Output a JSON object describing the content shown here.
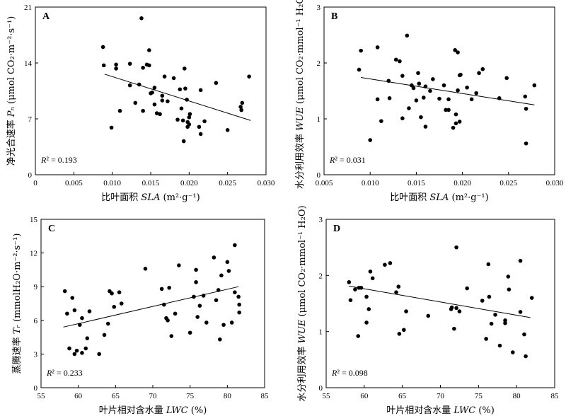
{
  "chart_data": [
    {
      "type": "scatter",
      "panel": "A",
      "xlabel": "比叶面积 SLA (m²·g⁻¹)",
      "ylabel": "净光合速率 Pₙ (μmol CO₂·m⁻²·s⁻¹)",
      "xlim": [
        0,
        0.03
      ],
      "ylim": [
        0,
        21
      ],
      "xticks": [
        "0",
        "0.005",
        "0.010",
        "0.015",
        "0.020",
        "0.025",
        "0.030"
      ],
      "yticks": [
        "0",
        "7",
        "14",
        "21"
      ],
      "r2_label": "R² = 0.193",
      "fit": {
        "x": [
          0.009,
          0.028
        ],
        "y": [
          12.6,
          6.8
        ]
      },
      "points": [
        [
          0.0088,
          16.0
        ],
        [
          0.0089,
          13.7
        ],
        [
          0.0099,
          5.9
        ],
        [
          0.0105,
          13.8
        ],
        [
          0.0105,
          13.3
        ],
        [
          0.011,
          8.0
        ],
        [
          0.0123,
          11.2
        ],
        [
          0.0123,
          13.9
        ],
        [
          0.013,
          9.0
        ],
        [
          0.0135,
          11.3
        ],
        [
          0.0138,
          19.6
        ],
        [
          0.014,
          13.4
        ],
        [
          0.014,
          8.0
        ],
        [
          0.0145,
          13.8
        ],
        [
          0.0148,
          13.7
        ],
        [
          0.0148,
          15.6
        ],
        [
          0.015,
          10.2
        ],
        [
          0.0152,
          10.3
        ],
        [
          0.0155,
          10.9
        ],
        [
          0.0155,
          8.8
        ],
        [
          0.0158,
          7.7
        ],
        [
          0.0162,
          7.6
        ],
        [
          0.0165,
          9.9
        ],
        [
          0.0165,
          9.3
        ],
        [
          0.0168,
          12.3
        ],
        [
          0.0172,
          9.2
        ],
        [
          0.018,
          12.1
        ],
        [
          0.0185,
          6.9
        ],
        [
          0.0188,
          10.7
        ],
        [
          0.019,
          8.3
        ],
        [
          0.0192,
          6.8
        ],
        [
          0.0193,
          4.2
        ],
        [
          0.0194,
          13.3
        ],
        [
          0.0195,
          10.8
        ],
        [
          0.0197,
          9.4
        ],
        [
          0.0198,
          6.0
        ],
        [
          0.0198,
          6.6
        ],
        [
          0.02,
          7.2
        ],
        [
          0.0201,
          7.6
        ],
        [
          0.02,
          6.3
        ],
        [
          0.0213,
          6.0
        ],
        [
          0.0215,
          5.1
        ],
        [
          0.0215,
          10.6
        ],
        [
          0.022,
          6.7
        ],
        [
          0.0235,
          11.5
        ],
        [
          0.025,
          5.6
        ],
        [
          0.0267,
          8.5
        ],
        [
          0.0268,
          8.1
        ],
        [
          0.0269,
          9.0
        ],
        [
          0.0278,
          12.3
        ]
      ]
    },
    {
      "type": "scatter",
      "panel": "B",
      "xlabel": "比叶面积 SLA (m²·g⁻¹)",
      "ylabel": "水分利用效率 WUE (μmol CO₂·mmol⁻¹ H₂O)",
      "xlim": [
        0.005,
        0.03
      ],
      "ylim": [
        0,
        3
      ],
      "xticks": [
        "0.005",
        "0.010",
        "0.015",
        "0.020",
        "0.025",
        "0.030"
      ],
      "yticks": [
        "0",
        "1",
        "2",
        "3"
      ],
      "r2_label": "R² = 0.031",
      "fit": {
        "x": [
          0.009,
          0.0278
        ],
        "y": [
          1.74,
          1.25
        ]
      },
      "points": [
        [
          0.0088,
          1.88
        ],
        [
          0.009,
          2.22
        ],
        [
          0.01,
          0.62
        ],
        [
          0.0108,
          2.28
        ],
        [
          0.0108,
          1.35
        ],
        [
          0.0112,
          0.96
        ],
        [
          0.012,
          1.68
        ],
        [
          0.0121,
          1.37
        ],
        [
          0.0128,
          2.06
        ],
        [
          0.0132,
          2.03
        ],
        [
          0.0135,
          1.77
        ],
        [
          0.0135,
          1.01
        ],
        [
          0.014,
          2.49
        ],
        [
          0.0142,
          1.19
        ],
        [
          0.0145,
          1.6
        ],
        [
          0.0147,
          1.55
        ],
        [
          0.015,
          1.33
        ],
        [
          0.0152,
          1.82
        ],
        [
          0.0153,
          1.63
        ],
        [
          0.0155,
          1.03
        ],
        [
          0.0158,
          1.38
        ],
        [
          0.016,
          0.86
        ],
        [
          0.016,
          1.58
        ],
        [
          0.0165,
          1.5
        ],
        [
          0.0168,
          1.71
        ],
        [
          0.0175,
          1.36
        ],
        [
          0.018,
          1.6
        ],
        [
          0.0182,
          1.16
        ],
        [
          0.0185,
          1.16
        ],
        [
          0.0185,
          1.35
        ],
        [
          0.019,
          0.84
        ],
        [
          0.0192,
          2.23
        ],
        [
          0.0193,
          1.08
        ],
        [
          0.0193,
          0.92
        ],
        [
          0.0195,
          2.19
        ],
        [
          0.0195,
          1.51
        ],
        [
          0.0197,
          0.95
        ],
        [
          0.0197,
          1.78
        ],
        [
          0.0198,
          1.79
        ],
        [
          0.0205,
          1.56
        ],
        [
          0.021,
          1.35
        ],
        [
          0.0215,
          1.46
        ],
        [
          0.0218,
          1.82
        ],
        [
          0.0222,
          1.89
        ],
        [
          0.024,
          1.37
        ],
        [
          0.0248,
          1.73
        ],
        [
          0.0268,
          1.4
        ],
        [
          0.0269,
          1.18
        ],
        [
          0.0269,
          0.56
        ],
        [
          0.0278,
          1.6
        ]
      ]
    },
    {
      "type": "scatter",
      "panel": "C",
      "xlabel": "叶片相对含水量 LWC (%)",
      "ylabel": "蒸腾速率 Tᵣ (mmolH₂O·m⁻²·s⁻¹)",
      "xlim": [
        55,
        85
      ],
      "ylim": [
        0,
        15
      ],
      "xticks": [
        "55",
        "60",
        "65",
        "70",
        "75",
        "80",
        "85"
      ],
      "yticks": [
        "0",
        "3",
        "6",
        "9",
        "12",
        "15"
      ],
      "r2_label": "R² = 0.233",
      "fit": {
        "x": [
          58,
          81.5
        ],
        "y": [
          5.4,
          9.0
        ]
      },
      "points": [
        [
          58.2,
          8.6
        ],
        [
          58.5,
          6.6
        ],
        [
          58.8,
          3.5
        ],
        [
          59.2,
          8.0
        ],
        [
          59.5,
          6.9
        ],
        [
          59.5,
          3.0
        ],
        [
          59.8,
          3.3
        ],
        [
          60.2,
          5.6
        ],
        [
          60.5,
          3.1
        ],
        [
          60.5,
          6.2
        ],
        [
          61.0,
          3.5
        ],
        [
          61.2,
          4.4
        ],
        [
          61.5,
          6.8
        ],
        [
          62.8,
          3.0
        ],
        [
          63.5,
          4.7
        ],
        [
          64.0,
          5.7
        ],
        [
          64.2,
          8.6
        ],
        [
          64.5,
          8.4
        ],
        [
          64.8,
          7.2
        ],
        [
          65.5,
          8.5
        ],
        [
          65.8,
          7.5
        ],
        [
          69.0,
          10.6
        ],
        [
          71.2,
          8.8
        ],
        [
          71.5,
          7.4
        ],
        [
          71.8,
          6.2
        ],
        [
          72.0,
          6.0
        ],
        [
          72.2,
          8.9
        ],
        [
          72.5,
          4.6
        ],
        [
          73.0,
          6.6
        ],
        [
          73.5,
          10.9
        ],
        [
          75.0,
          4.9
        ],
        [
          75.5,
          8.1
        ],
        [
          75.8,
          10.5
        ],
        [
          75.8,
          9.4
        ],
        [
          76.0,
          6.3
        ],
        [
          76.3,
          7.3
        ],
        [
          76.8,
          8.2
        ],
        [
          77.2,
          5.8
        ],
        [
          78.2,
          11.6
        ],
        [
          78.5,
          7.8
        ],
        [
          78.8,
          8.7
        ],
        [
          79.0,
          4.3
        ],
        [
          79.2,
          10.0
        ],
        [
          79.5,
          5.6
        ],
        [
          80.0,
          11.2
        ],
        [
          80.2,
          10.4
        ],
        [
          80.6,
          5.8
        ],
        [
          81.0,
          12.7
        ],
        [
          81.0,
          8.5
        ],
        [
          81.5,
          8.1
        ],
        [
          81.6,
          6.7
        ],
        [
          81.6,
          7.4
        ]
      ]
    },
    {
      "type": "scatter",
      "panel": "D",
      "xlabel": "叶片相对含水量 LWC (%)",
      "ylabel": "水分利用效率 WUE (μmol CO₂·mmol⁻¹ H₂O)",
      "xlim": [
        55,
        85
      ],
      "ylim": [
        0,
        3
      ],
      "xticks": [
        "55",
        "60",
        "65",
        "70",
        "75",
        "80",
        "85"
      ],
      "yticks": [
        "0",
        "1",
        "2",
        "3"
      ],
      "r2_label": "R² = 0.098",
      "fit": {
        "x": [
          58,
          81.8
        ],
        "y": [
          1.81,
          1.25
        ]
      },
      "points": [
        [
          58.0,
          1.88
        ],
        [
          58.2,
          1.56
        ],
        [
          58.8,
          1.75
        ],
        [
          59.2,
          0.92
        ],
        [
          59.3,
          1.78
        ],
        [
          59.6,
          1.78
        ],
        [
          60.3,
          1.62
        ],
        [
          60.3,
          1.16
        ],
        [
          60.6,
          1.4
        ],
        [
          60.8,
          2.07
        ],
        [
          61.1,
          1.95
        ],
        [
          62.7,
          2.19
        ],
        [
          63.4,
          2.22
        ],
        [
          64.2,
          1.7
        ],
        [
          64.5,
          1.8
        ],
        [
          64.6,
          0.96
        ],
        [
          65.2,
          1.03
        ],
        [
          65.5,
          1.36
        ],
        [
          68.4,
          1.28
        ],
        [
          71.4,
          1.4
        ],
        [
          71.5,
          1.43
        ],
        [
          71.8,
          1.05
        ],
        [
          72.1,
          1.42
        ],
        [
          72.1,
          2.5
        ],
        [
          72.5,
          1.36
        ],
        [
          73.5,
          1.77
        ],
        [
          75.5,
          1.55
        ],
        [
          76.0,
          0.87
        ],
        [
          76.3,
          2.2
        ],
        [
          76.4,
          1.62
        ],
        [
          76.7,
          1.14
        ],
        [
          77.2,
          1.3
        ],
        [
          77.8,
          0.75
        ],
        [
          78.5,
          1.2
        ],
        [
          78.5,
          1.15
        ],
        [
          78.9,
          1.98
        ],
        [
          79.0,
          1.75
        ],
        [
          79.5,
          0.63
        ],
        [
          80.5,
          1.35
        ],
        [
          80.5,
          2.26
        ],
        [
          81.0,
          0.95
        ],
        [
          81.2,
          0.56
        ],
        [
          82.0,
          1.6
        ]
      ]
    }
  ]
}
